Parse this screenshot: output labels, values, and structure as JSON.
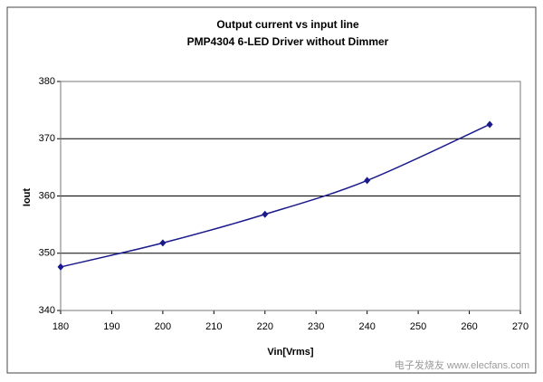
{
  "chart_data": {
    "type": "line",
    "title": "Output current vs input line",
    "subtitle": "PMP4304 6-LED Driver without Dimmer",
    "x_label": "Vin[Vrms]",
    "y_label": "Iout",
    "x": [
      180,
      200,
      220,
      240,
      264
    ],
    "series": [
      {
        "name": "Iout",
        "color": "#1a1a8c",
        "values": [
          347.6,
          351.8,
          356.8,
          362.7,
          372.5
        ]
      }
    ],
    "xlim": [
      180,
      270
    ],
    "xticks": [
      180,
      190,
      200,
      210,
      220,
      230,
      240,
      250,
      260,
      270
    ],
    "ylim": [
      340,
      380
    ],
    "yticks": [
      340,
      350,
      360,
      370,
      380
    ],
    "grid": true,
    "watermark": "电子发烧友 www.elecfans.com"
  }
}
